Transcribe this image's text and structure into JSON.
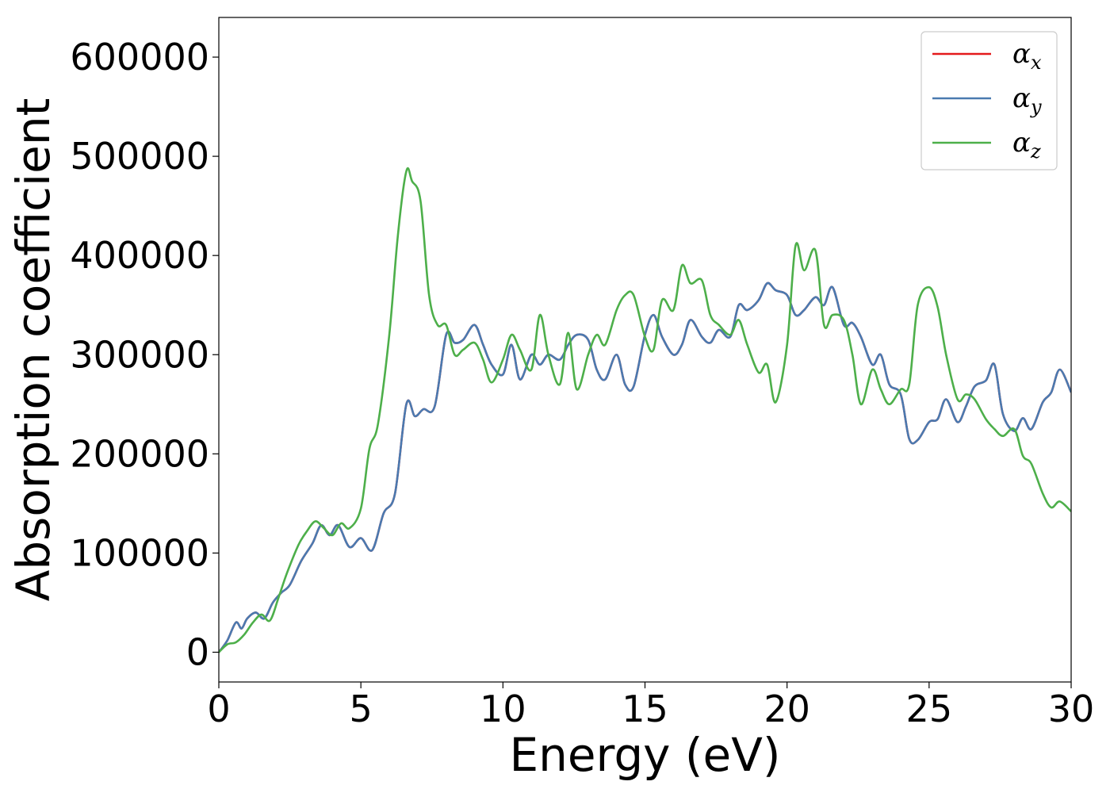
{
  "chart_data": {
    "type": "line",
    "title": "",
    "xlabel": "Energy (eV)",
    "ylabel": "Absorption coefficient",
    "xlim": [
      0,
      30
    ],
    "ylim": [
      -30000,
      640000
    ],
    "xticks": [
      0,
      5,
      10,
      15,
      20,
      25,
      30
    ],
    "yticks": [
      0,
      100000,
      200000,
      300000,
      400000,
      500000,
      600000
    ],
    "grid": false,
    "legend_position": "top-right",
    "series": [
      {
        "name": "αx",
        "name_base": "α",
        "name_sub": "x",
        "color": "#e41a1c",
        "x": [
          0,
          0.3,
          0.6,
          0.8,
          1.0,
          1.3,
          1.6,
          1.9,
          2.2,
          2.5,
          2.9,
          3.3,
          3.6,
          3.9,
          4.2,
          4.6,
          5.0,
          5.4,
          5.8,
          6.2,
          6.6,
          6.9,
          7.2,
          7.6,
          8.0,
          8.3,
          8.6,
          9.0,
          9.3,
          9.6,
          10.0,
          10.3,
          10.6,
          11.0,
          11.3,
          11.6,
          12.0,
          12.3,
          12.6,
          13.0,
          13.3,
          13.6,
          14.0,
          14.3,
          14.6,
          15.0,
          15.3,
          15.6,
          16.0,
          16.3,
          16.6,
          17.0,
          17.3,
          17.6,
          18.0,
          18.3,
          18.6,
          19.0,
          19.3,
          19.6,
          20.0,
          20.3,
          20.6,
          21.0,
          21.3,
          21.6,
          22.0,
          22.3,
          22.6,
          23.0,
          23.3,
          23.6,
          24.0,
          24.3,
          24.6,
          25.0,
          25.3,
          25.6,
          26.0,
          26.3,
          26.6,
          27.0,
          27.3,
          27.6,
          28.0,
          28.3,
          28.6,
          29.0,
          29.3,
          29.6,
          30.0
        ],
        "values": [
          0,
          12000,
          30000,
          24000,
          34000,
          40000,
          34000,
          50000,
          60000,
          68000,
          92000,
          110000,
          128000,
          118000,
          128000,
          106000,
          115000,
          103000,
          140000,
          160000,
          250000,
          238000,
          245000,
          248000,
          320000,
          312000,
          315000,
          330000,
          310000,
          290000,
          280000,
          310000,
          275000,
          300000,
          290000,
          300000,
          295000,
          310000,
          320000,
          315000,
          285000,
          275000,
          300000,
          270000,
          268000,
          320000,
          340000,
          318000,
          300000,
          310000,
          335000,
          318000,
          312000,
          325000,
          318000,
          350000,
          345000,
          355000,
          372000,
          365000,
          360000,
          340000,
          345000,
          358000,
          350000,
          368000,
          330000,
          332000,
          318000,
          290000,
          300000,
          270000,
          260000,
          215000,
          214000,
          232000,
          235000,
          255000,
          232000,
          248000,
          268000,
          274000,
          290000,
          240000,
          223000,
          236000,
          225000,
          252000,
          262000,
          285000,
          262000
        ]
      },
      {
        "name": "αy",
        "name_base": "α",
        "name_sub": "y",
        "color": "#4a7ab0",
        "x": [
          0,
          0.3,
          0.6,
          0.8,
          1.0,
          1.3,
          1.6,
          1.9,
          2.2,
          2.5,
          2.9,
          3.3,
          3.6,
          3.9,
          4.2,
          4.6,
          5.0,
          5.4,
          5.8,
          6.2,
          6.6,
          6.9,
          7.2,
          7.6,
          8.0,
          8.3,
          8.6,
          9.0,
          9.3,
          9.6,
          10.0,
          10.3,
          10.6,
          11.0,
          11.3,
          11.6,
          12.0,
          12.3,
          12.6,
          13.0,
          13.3,
          13.6,
          14.0,
          14.3,
          14.6,
          15.0,
          15.3,
          15.6,
          16.0,
          16.3,
          16.6,
          17.0,
          17.3,
          17.6,
          18.0,
          18.3,
          18.6,
          19.0,
          19.3,
          19.6,
          20.0,
          20.3,
          20.6,
          21.0,
          21.3,
          21.6,
          22.0,
          22.3,
          22.6,
          23.0,
          23.3,
          23.6,
          24.0,
          24.3,
          24.6,
          25.0,
          25.3,
          25.6,
          26.0,
          26.3,
          26.6,
          27.0,
          27.3,
          27.6,
          28.0,
          28.3,
          28.6,
          29.0,
          29.3,
          29.6,
          30.0
        ],
        "values": [
          0,
          12000,
          30000,
          24000,
          34000,
          40000,
          34000,
          50000,
          60000,
          68000,
          92000,
          110000,
          128000,
          118000,
          128000,
          106000,
          115000,
          103000,
          140000,
          160000,
          250000,
          238000,
          245000,
          248000,
          320000,
          312000,
          315000,
          330000,
          310000,
          290000,
          280000,
          310000,
          275000,
          300000,
          290000,
          300000,
          295000,
          310000,
          320000,
          315000,
          285000,
          275000,
          300000,
          270000,
          268000,
          320000,
          340000,
          318000,
          300000,
          310000,
          335000,
          318000,
          312000,
          325000,
          318000,
          350000,
          345000,
          355000,
          372000,
          365000,
          360000,
          340000,
          345000,
          358000,
          350000,
          368000,
          330000,
          332000,
          318000,
          290000,
          300000,
          270000,
          260000,
          215000,
          214000,
          232000,
          235000,
          255000,
          232000,
          248000,
          268000,
          274000,
          290000,
          240000,
          223000,
          236000,
          225000,
          252000,
          262000,
          285000,
          262000
        ]
      },
      {
        "name": "αz",
        "name_base": "α",
        "name_sub": "z",
        "color": "#4daf4a",
        "x": [
          0,
          0.3,
          0.6,
          0.9,
          1.2,
          1.5,
          1.8,
          2.1,
          2.4,
          2.8,
          3.1,
          3.4,
          3.7,
          4.0,
          4.3,
          4.6,
          5.0,
          5.3,
          5.6,
          6.0,
          6.3,
          6.6,
          6.8,
          7.1,
          7.4,
          7.7,
          8.0,
          8.3,
          8.6,
          9.0,
          9.3,
          9.6,
          10.0,
          10.3,
          10.6,
          11.0,
          11.3,
          11.6,
          12.0,
          12.3,
          12.6,
          13.0,
          13.3,
          13.6,
          14.0,
          14.3,
          14.6,
          15.0,
          15.3,
          15.6,
          16.0,
          16.3,
          16.6,
          17.0,
          17.3,
          17.6,
          18.0,
          18.3,
          18.6,
          19.0,
          19.3,
          19.6,
          20.0,
          20.3,
          20.6,
          21.0,
          21.3,
          21.6,
          22.0,
          22.3,
          22.6,
          23.0,
          23.3,
          23.6,
          24.0,
          24.3,
          24.6,
          25.0,
          25.3,
          25.6,
          26.0,
          26.3,
          26.6,
          27.0,
          27.3,
          27.6,
          28.0,
          28.3,
          28.6,
          29.0,
          29.3,
          29.6,
          30.0
        ],
        "values": [
          0,
          8000,
          10000,
          18000,
          30000,
          38000,
          32000,
          55000,
          80000,
          108000,
          122000,
          132000,
          125000,
          118000,
          130000,
          125000,
          145000,
          205000,
          230000,
          320000,
          420000,
          485000,
          475000,
          455000,
          360000,
          330000,
          330000,
          300000,
          305000,
          312000,
          295000,
          272000,
          295000,
          320000,
          305000,
          285000,
          340000,
          300000,
          270000,
          322000,
          265000,
          300000,
          320000,
          310000,
          345000,
          360000,
          360000,
          318000,
          305000,
          355000,
          345000,
          390000,
          372000,
          375000,
          340000,
          330000,
          320000,
          335000,
          310000,
          282000,
          290000,
          252000,
          310000,
          410000,
          385000,
          405000,
          330000,
          340000,
          335000,
          300000,
          250000,
          285000,
          265000,
          250000,
          265000,
          270000,
          350000,
          368000,
          348000,
          300000,
          255000,
          260000,
          255000,
          235000,
          225000,
          218000,
          225000,
          198000,
          190000,
          160000,
          146000,
          152000,
          142000
        ]
      }
    ]
  }
}
